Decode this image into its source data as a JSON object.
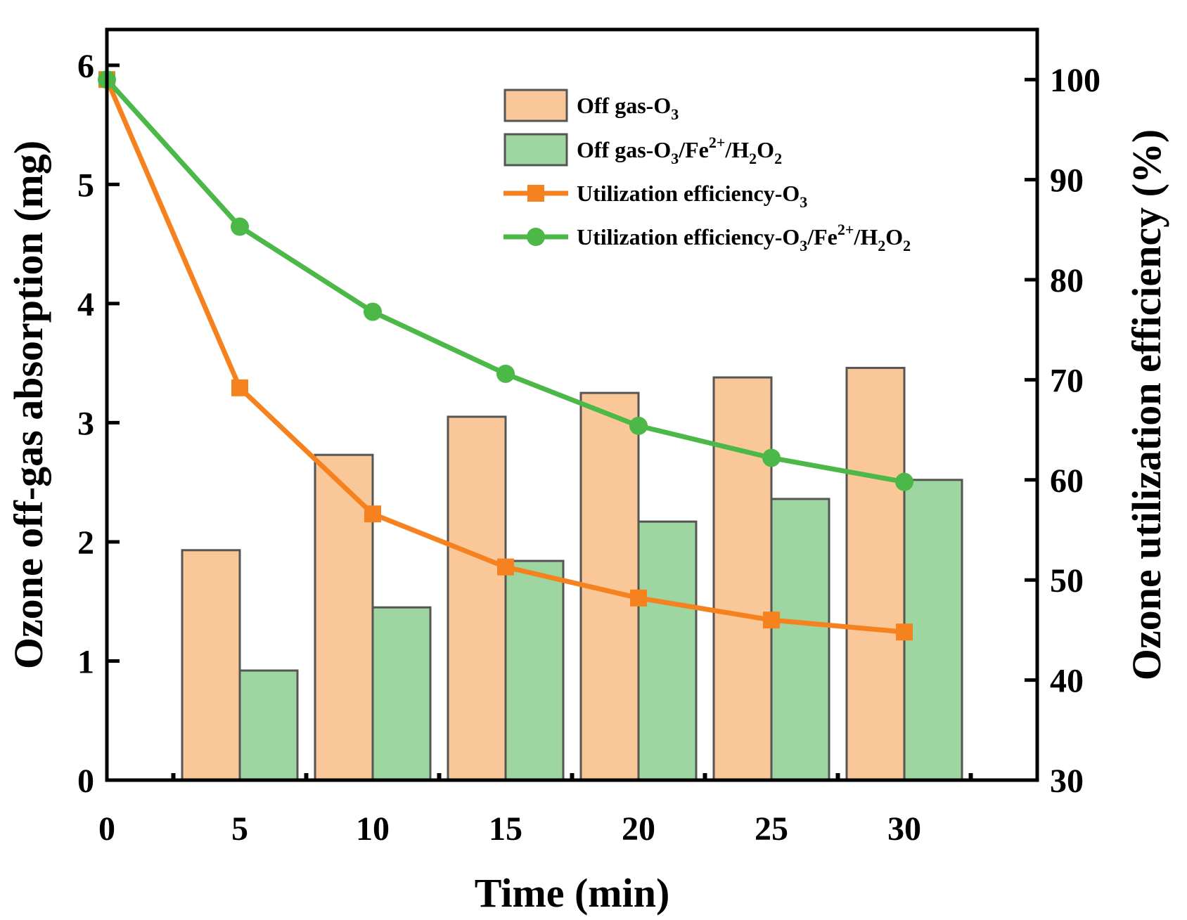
{
  "chart_data": {
    "type": "bar+line",
    "x_categories": [
      5,
      10,
      15,
      20,
      25,
      30
    ],
    "x_ticks": [
      0,
      5,
      10,
      15,
      20,
      25,
      30
    ],
    "xlabel": "Time (min)",
    "xlim": [
      0,
      35
    ],
    "ylabel_left": "Ozone off-gas absorption (mg)",
    "ylim_left": [
      0,
      6.3
    ],
    "yticks_left": [
      0,
      1,
      2,
      3,
      4,
      5,
      6
    ],
    "ylabel_right": "Ozone utilization efficiency (%)",
    "ylim_right": [
      30,
      105
    ],
    "yticks_right": [
      30,
      40,
      50,
      60,
      70,
      80,
      90,
      100
    ],
    "legend_position": "top-right",
    "bar_series": [
      {
        "name": "Off gas-O3",
        "legend_main": "Off gas-O",
        "legend_parts": [
          {
            "text": "Off gas-O",
            "style": "normal"
          },
          {
            "text": "3",
            "style": "sub"
          }
        ],
        "color": "#fac898",
        "x": [
          5,
          10,
          15,
          20,
          25,
          30
        ],
        "values": [
          1.93,
          2.73,
          3.05,
          3.25,
          3.38,
          3.46
        ]
      },
      {
        "name": "Off gas-O3/Fe2+/H2O2",
        "legend_main": "Off gas-O",
        "legend_parts": [
          {
            "text": "Off gas-O",
            "style": "normal"
          },
          {
            "text": "3",
            "style": "sub"
          },
          {
            "text": "/Fe",
            "style": "normal"
          },
          {
            "text": "2+",
            "style": "sup"
          },
          {
            "text": "/H",
            "style": "normal"
          },
          {
            "text": "2",
            "style": "sub"
          },
          {
            "text": "O",
            "style": "normal"
          },
          {
            "text": "2",
            "style": "sub"
          }
        ],
        "color": "#9dd6a0",
        "x": [
          5,
          10,
          15,
          20,
          25,
          30
        ],
        "values": [
          0.92,
          1.45,
          1.84,
          2.17,
          2.36,
          2.52
        ]
      }
    ],
    "line_series": [
      {
        "name": "Utilization efficiency-O3",
        "legend_parts": [
          {
            "text": "Utilization efficiency-O",
            "style": "normal"
          },
          {
            "text": "3",
            "style": "sub"
          }
        ],
        "color": "#f5821f",
        "marker": "square",
        "x": [
          0,
          5,
          10,
          15,
          20,
          25,
          30
        ],
        "values": [
          100,
          69.2,
          56.6,
          51.3,
          48.2,
          46.0,
          44.8
        ]
      },
      {
        "name": "Utilization efficiency-O3/Fe2+/H2O2",
        "legend_parts": [
          {
            "text": "Utilization efficiency-O",
            "style": "normal"
          },
          {
            "text": "3",
            "style": "sub"
          },
          {
            "text": "/Fe",
            "style": "normal"
          },
          {
            "text": "2+",
            "style": "sup"
          },
          {
            "text": "/H",
            "style": "normal"
          },
          {
            "text": "2",
            "style": "sub"
          },
          {
            "text": "O",
            "style": "normal"
          },
          {
            "text": "2",
            "style": "sub"
          }
        ],
        "color": "#4bb848",
        "marker": "circle",
        "x": [
          0,
          5,
          10,
          15,
          20,
          25,
          30
        ],
        "values": [
          100,
          85.3,
          76.8,
          70.6,
          65.4,
          62.2,
          59.8
        ]
      }
    ]
  }
}
